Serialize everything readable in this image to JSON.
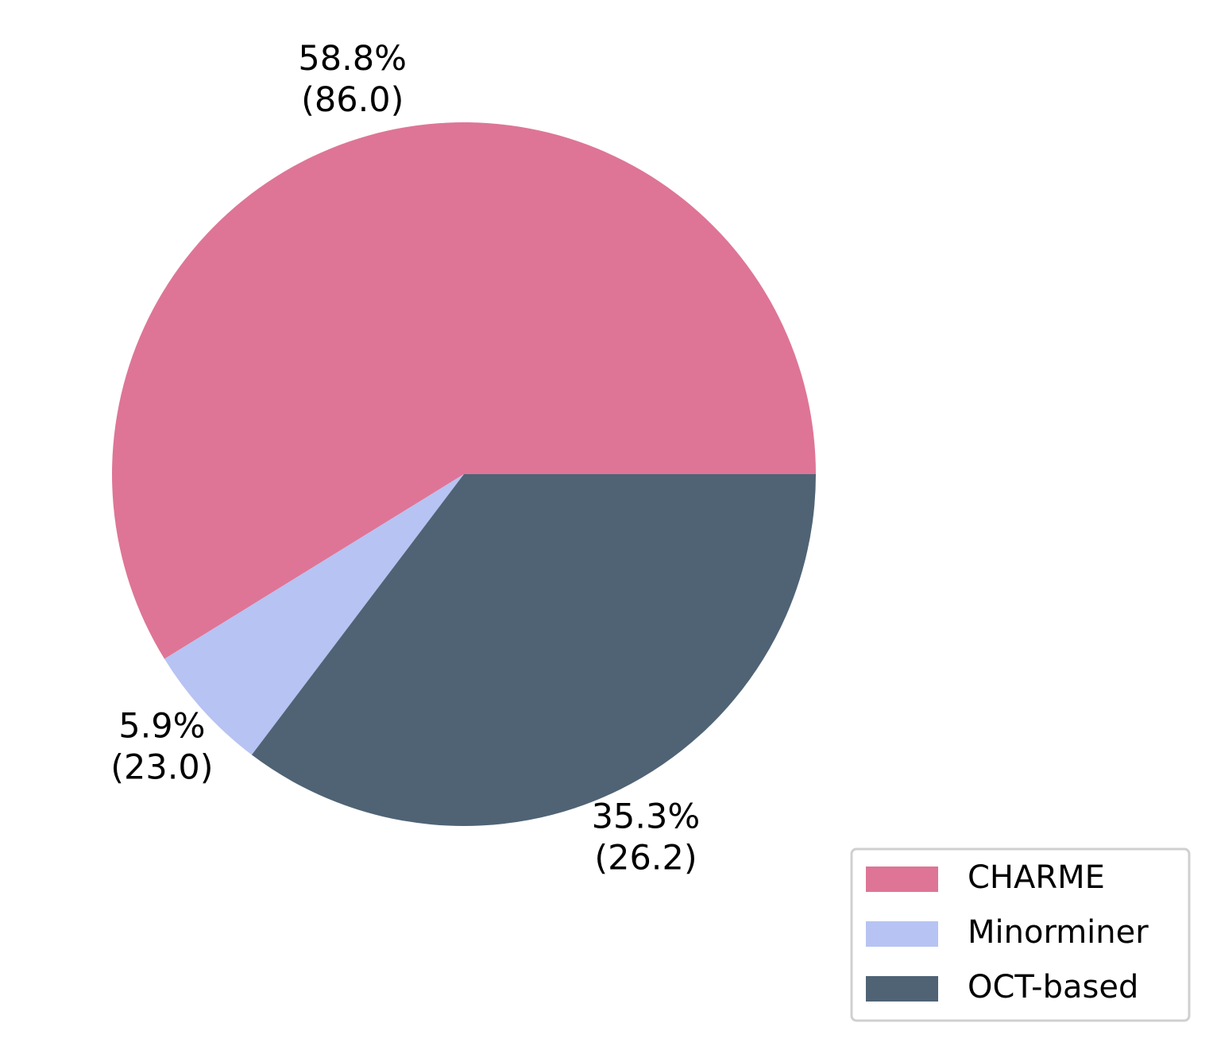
{
  "chart_data": {
    "type": "pie",
    "categories": [
      "CHARME",
      "Minorminer",
      "OCT-based"
    ],
    "values": [
      58.8,
      5.9,
      35.3
    ],
    "value_labels": [
      [
        "58.8%",
        "(86.0)"
      ],
      [
        "5.9%",
        "(23.0)"
      ],
      [
        "35.3%",
        "(26.2)"
      ]
    ],
    "colors": [
      "#de7596",
      "#b7c3f3",
      "#4f6375"
    ],
    "legend": "lower right"
  }
}
